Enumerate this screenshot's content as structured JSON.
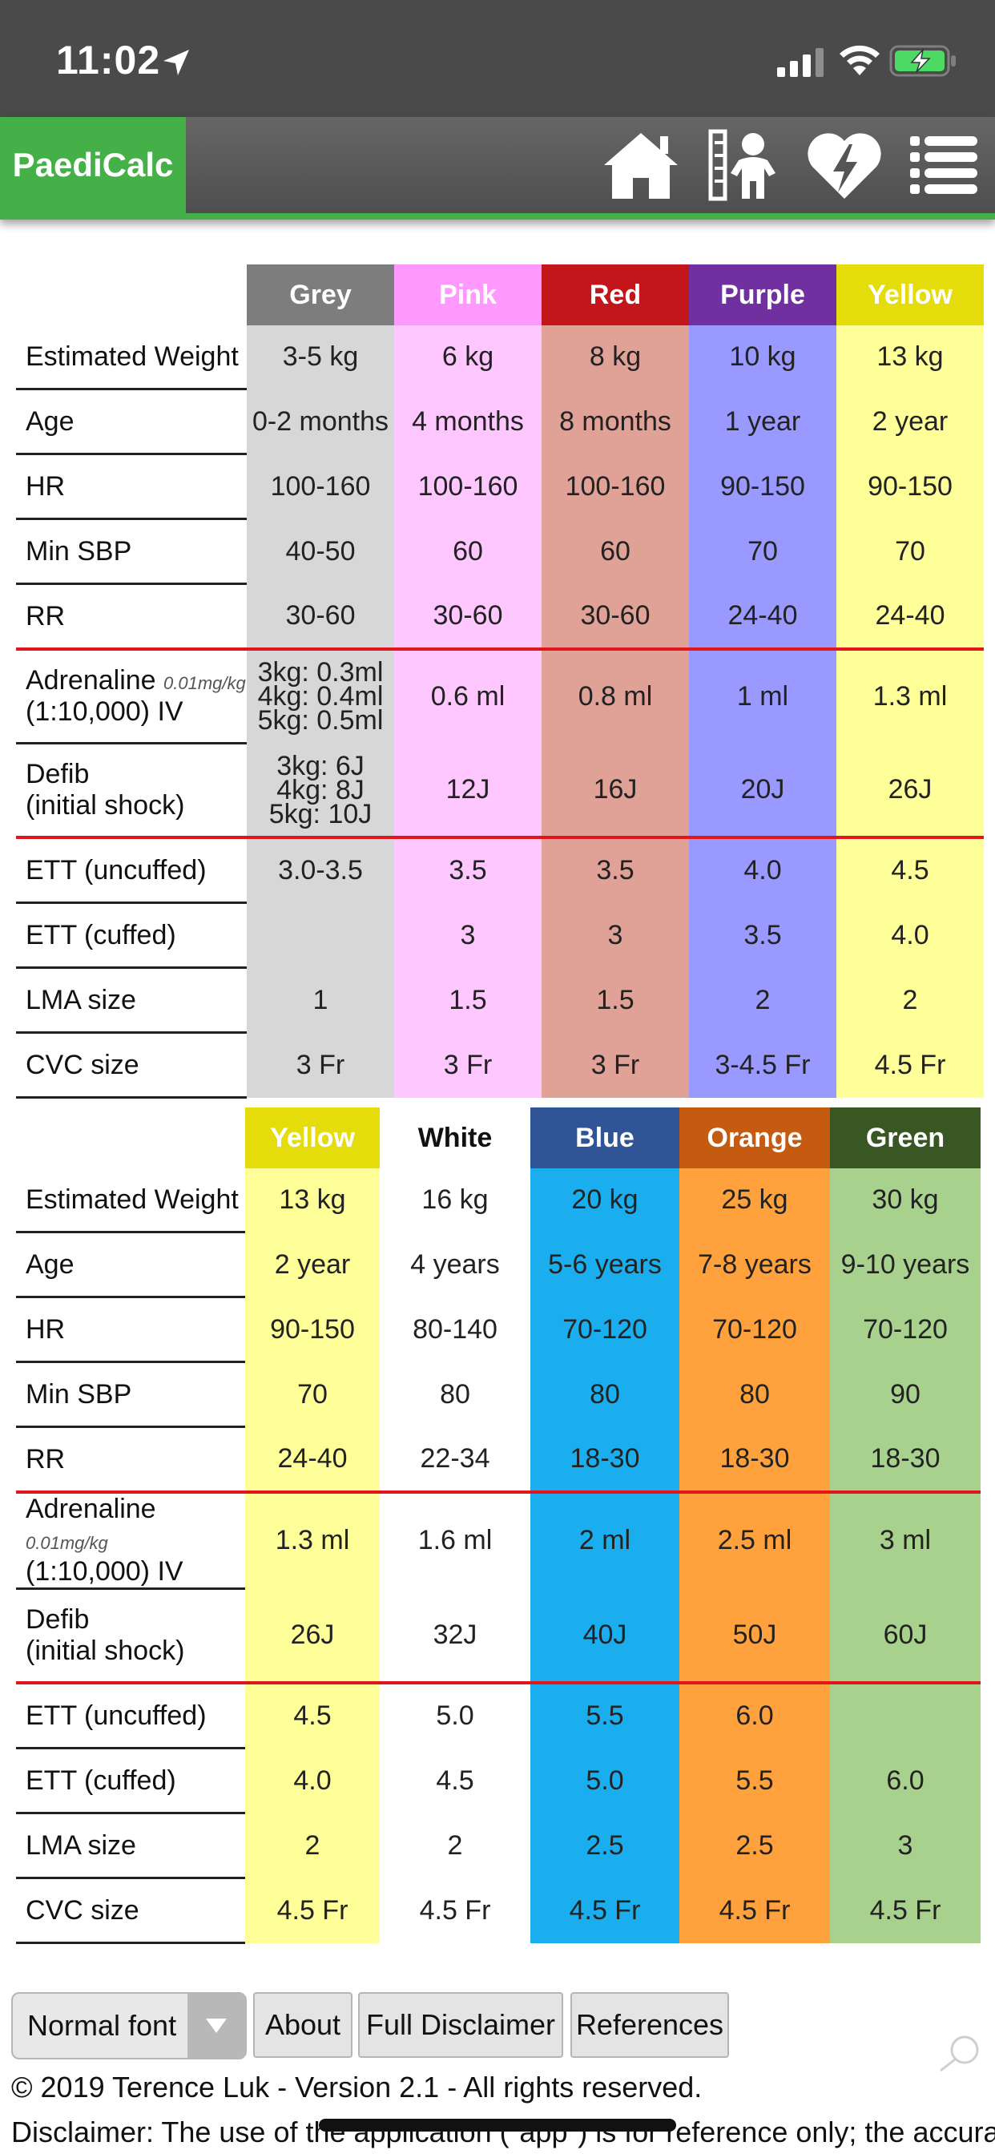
{
  "status": {
    "time": "11:02"
  },
  "app": {
    "brand": "PaediCalc",
    "nav": [
      "home-icon",
      "growth-icon",
      "heart-defib-icon",
      "menu-icon"
    ]
  },
  "colors": {
    "grey": "#7d7d7d",
    "grey_bg": "#d7d7d7",
    "pink": "#ff99ff",
    "pink_bg": "#ffc7ff",
    "red": "#c2161a",
    "red_bg": "#e0a196",
    "purple": "#7030a0",
    "purple_bg": "#9999ff",
    "yellow": "#e5dd0b",
    "yellow_bg": "#ffff99",
    "white": "#ffffff",
    "white_bg": "#ffffff",
    "blue": "#2f5597",
    "blue_bg": "#1aaeee",
    "orange": "#c55a11",
    "orange_bg": "#ffa23e",
    "green": "#385723",
    "green_bg": "#a9d18e",
    "divider": "#e0161c",
    "brand": "#46b048"
  },
  "tables": [
    {
      "headers": [
        "Grey",
        "Pink",
        "Red",
        "Purple",
        "Yellow"
      ],
      "rows": [
        {
          "label": "Estimated Weight",
          "values": [
            "3-5 kg",
            "6 kg",
            "8 kg",
            "10 kg",
            "13 kg"
          ]
        },
        {
          "label": "Age",
          "values": [
            "0-2 months",
            "4 months",
            "8 months",
            "1 year",
            "2 year"
          ]
        },
        {
          "label": "HR",
          "values": [
            "100-160",
            "100-160",
            "100-160",
            "90-150",
            "90-150"
          ]
        },
        {
          "label": "Min SBP",
          "values": [
            "40-50",
            "60",
            "60",
            "70",
            "70"
          ]
        },
        {
          "label": "RR",
          "values": [
            "30-60",
            "30-60",
            "30-60",
            "24-40",
            "24-40"
          ]
        },
        {
          "label": "Adrenaline",
          "label_sub": "0.01mg/kg",
          "label2": "(1:10,000) IV",
          "values": [
            "3kg: 0.3ml\n4kg: 0.4ml\n5kg: 0.5ml",
            "0.6 ml",
            "0.8 ml",
            "1 ml",
            "1.3 ml"
          ]
        },
        {
          "label": "Defib",
          "label2": "(initial shock)",
          "values": [
            "3kg: 6J\n4kg: 8J\n5kg: 10J",
            "12J",
            "16J",
            "20J",
            "26J"
          ]
        },
        {
          "label": "ETT (uncuffed)",
          "values": [
            "3.0-3.5",
            "3.5",
            "3.5",
            "4.0",
            "4.5"
          ]
        },
        {
          "label": "ETT (cuffed)",
          "values": [
            "",
            "3",
            "3",
            "3.5",
            "4.0"
          ]
        },
        {
          "label": "LMA size",
          "values": [
            "1",
            "1.5",
            "1.5",
            "2",
            "2"
          ]
        },
        {
          "label": "CVC size",
          "values": [
            "3 Fr",
            "3 Fr",
            "3 Fr",
            "3-4.5 Fr",
            "4.5 Fr"
          ]
        }
      ]
    },
    {
      "headers": [
        "Yellow",
        "White",
        "Blue",
        "Orange",
        "Green"
      ],
      "rows": [
        {
          "label": "Estimated Weight",
          "values": [
            "13 kg",
            "16 kg",
            "20 kg",
            "25 kg",
            "30 kg"
          ]
        },
        {
          "label": "Age",
          "values": [
            "2 year",
            "4 years",
            "5-6 years",
            "7-8 years",
            "9-10 years"
          ]
        },
        {
          "label": "HR",
          "values": [
            "90-150",
            "80-140",
            "70-120",
            "70-120",
            "70-120"
          ]
        },
        {
          "label": "Min SBP",
          "values": [
            "70",
            "80",
            "80",
            "80",
            "90"
          ]
        },
        {
          "label": "RR",
          "values": [
            "24-40",
            "22-34",
            "18-30",
            "18-30",
            "18-30"
          ]
        },
        {
          "label": "Adrenaline",
          "label_sub": "0.01mg/kg",
          "label2": "(1:10,000) IV",
          "values": [
            "1.3 ml",
            "1.6 ml",
            "2 ml",
            "2.5 ml",
            "3 ml"
          ]
        },
        {
          "label": "Defib",
          "label2": "(initial shock)",
          "values": [
            "26J",
            "32J",
            "40J",
            "50J",
            "60J"
          ]
        },
        {
          "label": "ETT (uncuffed)",
          "values": [
            "4.5",
            "5.0",
            "5.5",
            "6.0",
            ""
          ]
        },
        {
          "label": "ETT (cuffed)",
          "values": [
            "4.0",
            "4.5",
            "5.0",
            "5.5",
            "6.0"
          ]
        },
        {
          "label": "LMA size",
          "values": [
            "2",
            "2",
            "2.5",
            "2.5",
            "3"
          ]
        },
        {
          "label": "CVC size",
          "values": [
            "4.5 Fr",
            "4.5 Fr",
            "4.5 Fr",
            "4.5 Fr",
            "4.5 Fr"
          ]
        }
      ]
    }
  ],
  "footer": {
    "font_select": "Normal font",
    "buttons": [
      "About",
      "Full Disclaimer",
      "References"
    ],
    "copyright": "© 2019 Terence Luk - Version 2.1 - All rights reserved.",
    "disclaimer": "Disclaimer: The use of the application (\"app\") is for reference only; the accuracy"
  }
}
